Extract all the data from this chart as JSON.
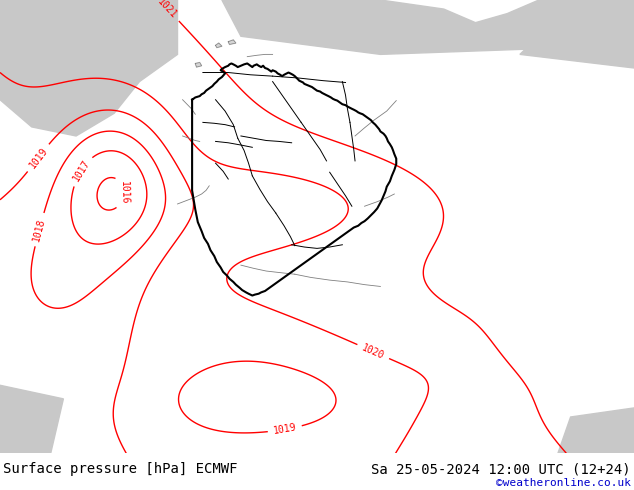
{
  "title_left": "Surface pressure [hPa] ECMWF",
  "title_right": "Sa 25-05-2024 12:00 UTC (12+24)",
  "credit": "©weatheronline.co.uk",
  "contour_color": "#ff0000",
  "contour_levels": [
    1016,
    1017,
    1018,
    1019,
    1020,
    1021
  ],
  "label_fontsize": 7,
  "title_fontsize": 10,
  "credit_fontsize": 8,
  "credit_color": "#0000cc",
  "land_green": "#c8f0a0",
  "sea_grey": "#c8c8c8",
  "border_black": "#000000",
  "state_border": "#000000",
  "footer_bg": "#ffffff"
}
